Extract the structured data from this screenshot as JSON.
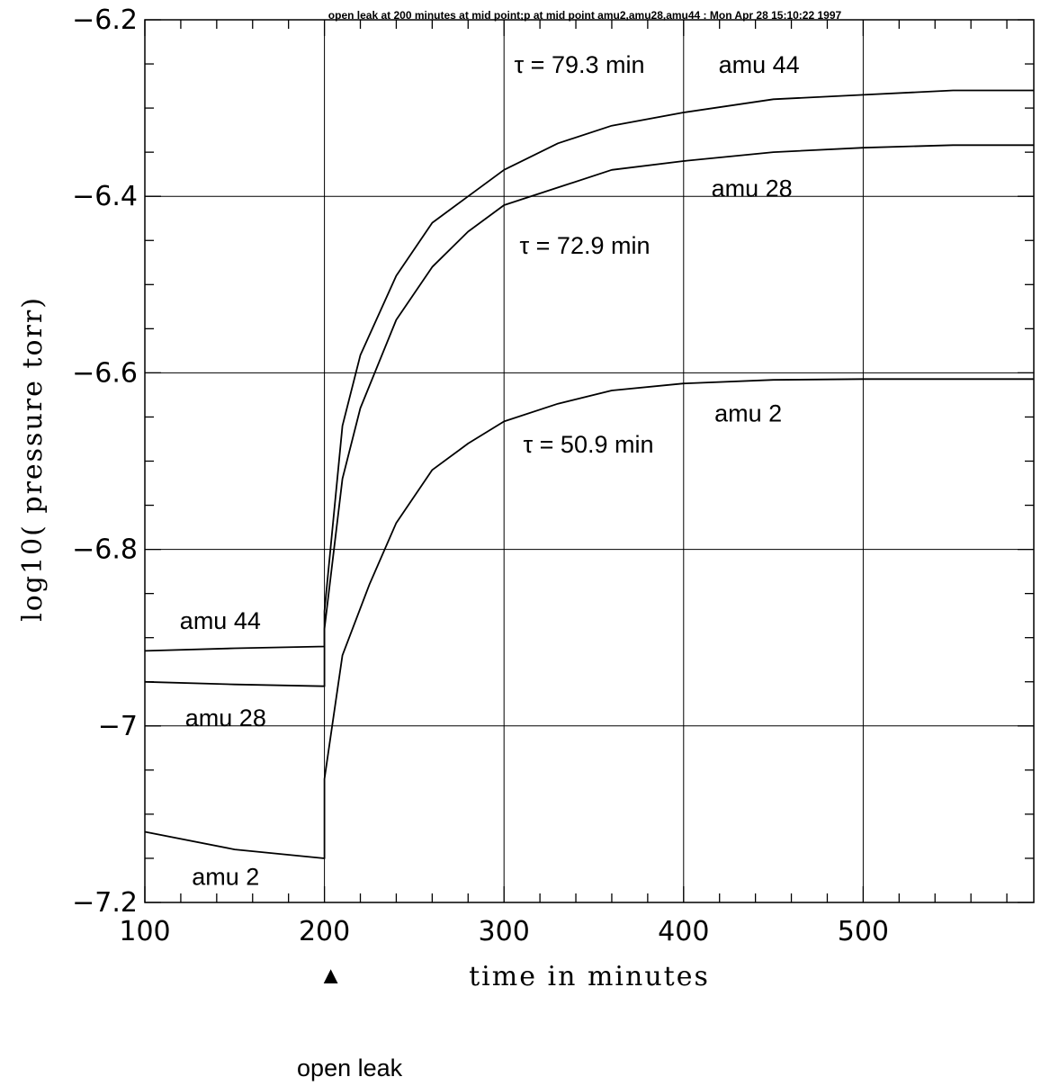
{
  "chart_data": {
    "type": "line",
    "title": "open leak at 200 minutes at mid point;p at mid point amu2,amu28,amu44 : Mon Apr 28 15:10:22 1997",
    "xlabel": "time in minutes",
    "ylabel": "log10( pressure torr)",
    "xlim": [
      100,
      595
    ],
    "ylim": [
      -7.2,
      -6.2
    ],
    "x_ticks": [
      100,
      200,
      300,
      400,
      500
    ],
    "x_tick_labels": [
      "100",
      "200",
      "300",
      "400",
      "500"
    ],
    "y_ticks": [
      -7.2,
      -7.0,
      -6.8,
      -6.6,
      -6.4,
      -6.2
    ],
    "y_tick_labels": [
      "−7.2",
      "−7",
      "−6.8",
      "−6.6",
      "−6.4",
      "−6.2"
    ],
    "grid": true,
    "series": [
      {
        "name": "amu 44",
        "x": [
          100,
          150,
          200,
          200,
          210,
          220,
          240,
          260,
          280,
          300,
          330,
          360,
          400,
          450,
          500,
          550,
          595
        ],
        "y": [
          -6.915,
          -6.912,
          -6.91,
          -6.87,
          -6.66,
          -6.58,
          -6.49,
          -6.43,
          -6.4,
          -6.37,
          -6.34,
          -6.32,
          -6.305,
          -6.29,
          -6.285,
          -6.28,
          -6.28
        ]
      },
      {
        "name": "amu 28",
        "x": [
          100,
          150,
          200,
          200,
          210,
          220,
          240,
          260,
          280,
          300,
          330,
          360,
          400,
          450,
          500,
          550,
          595
        ],
        "y": [
          -6.95,
          -6.953,
          -6.955,
          -6.89,
          -6.72,
          -6.64,
          -6.54,
          -6.48,
          -6.44,
          -6.41,
          -6.39,
          -6.37,
          -6.36,
          -6.35,
          -6.345,
          -6.342,
          -6.342
        ]
      },
      {
        "name": "amu 2",
        "x": [
          100,
          150,
          200,
          200,
          210,
          225,
          240,
          260,
          280,
          300,
          330,
          360,
          400,
          450,
          500,
          550,
          595
        ],
        "y": [
          -7.12,
          -7.14,
          -7.15,
          -7.06,
          -6.92,
          -6.84,
          -6.77,
          -6.71,
          -6.68,
          -6.655,
          -6.635,
          -6.62,
          -6.612,
          -6.608,
          -6.607,
          -6.607,
          -6.607
        ]
      }
    ],
    "annotations": [
      {
        "text": "τ = 79.3 min",
        "x": 342,
        "y": -6.25
      },
      {
        "text": "amu 44",
        "x": 442,
        "y": -6.25
      },
      {
        "text": "amu 28",
        "x": 438,
        "y": -6.39
      },
      {
        "text": "τ = 72.9 min",
        "x": 345,
        "y": -6.455
      },
      {
        "text": "amu 2",
        "x": 436,
        "y": -6.645
      },
      {
        "text": "τ = 50.9 min",
        "x": 347,
        "y": -6.68
      },
      {
        "text": "amu 44",
        "x": 142,
        "y": -6.88
      },
      {
        "text": "amu 28",
        "x": 145,
        "y": -6.99
      },
      {
        "text": "amu 2",
        "x": 145,
        "y": -7.17
      }
    ],
    "marker": {
      "text": "open leak",
      "x": 200,
      "symbol": "▲"
    }
  }
}
